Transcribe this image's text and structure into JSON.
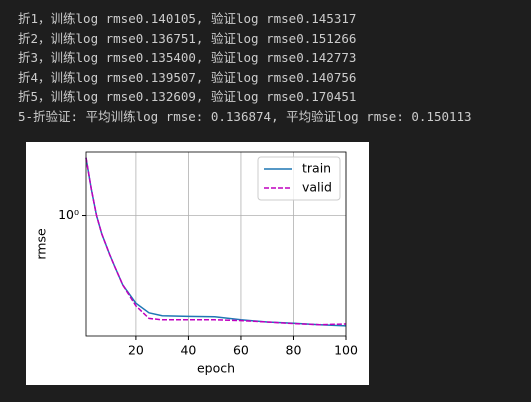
{
  "output": {
    "lines": [
      "折1，训练log rmse0.140105, 验证log rmse0.145317",
      "折2，训练log rmse0.136751, 验证log rmse0.151266",
      "折3，训练log rmse0.135400, 验证log rmse0.142773",
      "折4，训练log rmse0.139507, 验证log rmse0.140756",
      "折5，训练log rmse0.132609, 验证log rmse0.170451",
      "5-折验证: 平均训练log rmse: 0.136874, 平均验证log rmse: 0.150113"
    ]
  },
  "chart_data": {
    "type": "line",
    "x_label": "epoch",
    "y_label": "rmse",
    "x": [
      1,
      3,
      5,
      7,
      10,
      12,
      15,
      20,
      25,
      30,
      40,
      50,
      60,
      70,
      80,
      90,
      100
    ],
    "series": [
      {
        "name": "train",
        "color": "#1f77b4",
        "dash": false,
        "values": [
          2.8,
          1.6,
          1.0,
          0.72,
          0.5,
          0.4,
          0.29,
          0.21,
          0.177,
          0.168,
          0.166,
          0.165,
          0.156,
          0.15,
          0.147,
          0.143,
          0.14
        ]
      },
      {
        "name": "valid",
        "color": "#bf00bf",
        "dash": true,
        "values": [
          2.8,
          1.6,
          1.0,
          0.72,
          0.5,
          0.4,
          0.29,
          0.2,
          0.16,
          0.156,
          0.156,
          0.156,
          0.154,
          0.15,
          0.146,
          0.143,
          0.145
        ]
      }
    ],
    "xlim": [
      1,
      100
    ],
    "xticks": [
      20,
      40,
      60,
      80,
      100
    ],
    "ylim": [
      0.117,
      3.1
    ],
    "yticks": [
      {
        "value": 1,
        "label": "10⁰"
      }
    ],
    "log_y": true,
    "grid": true,
    "legend": "upper-right"
  }
}
